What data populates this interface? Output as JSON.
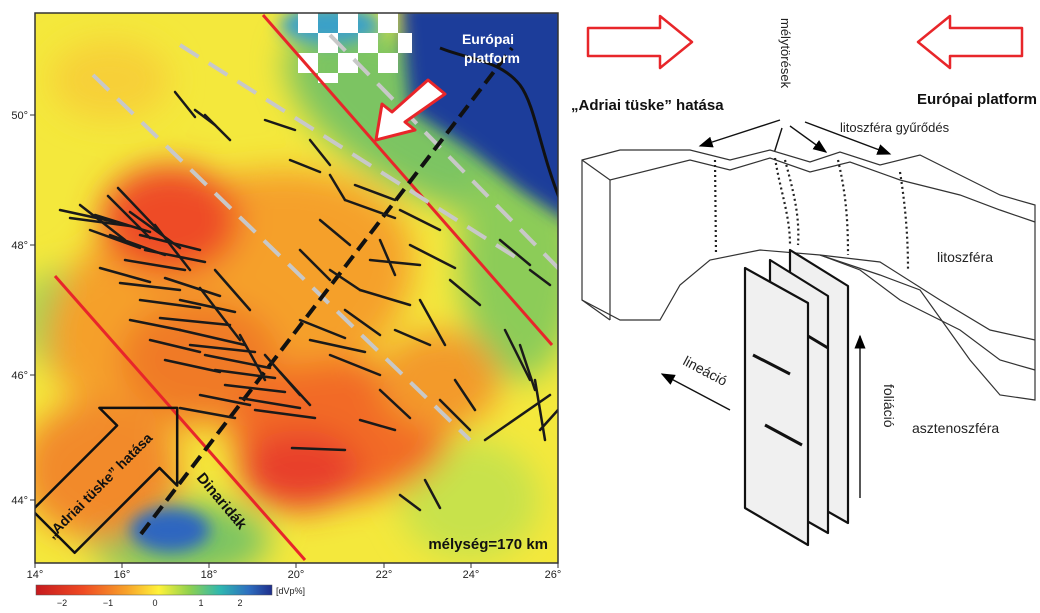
{
  "map": {
    "x_ticks": [
      "14°",
      "16°",
      "18°",
      "20°",
      "22°",
      "24°",
      "26°"
    ],
    "y_ticks": [
      "50°",
      "48°",
      "46°",
      "44°"
    ],
    "depth_label": "mélység=170 km",
    "european_platform_label_line1": "Európai",
    "european_platform_label_line2": "platform",
    "adriatic_label": "„Adriai tüske” hatása",
    "dinarides_label": "Dinaridák"
  },
  "colorbar": {
    "unit": "[dVp%]",
    "ticks": [
      "−2",
      "−1",
      "0",
      "1",
      "2"
    ]
  },
  "diagram": {
    "title_left": "„Adriai tüske” hatása",
    "title_right": "Európai platform",
    "deep_fractures": "mélytörések",
    "lithosphere_folding": "litoszféra gyűrődés",
    "lithosphere": "litoszféra",
    "asthenosphere": "asztenoszféra",
    "lineation": "lineáció",
    "foliation": "foliáció"
  },
  "colors": {
    "fault_red": "#e8262a",
    "arrow_red": "#e8262a",
    "platform_blue": "#1f3c9a"
  }
}
